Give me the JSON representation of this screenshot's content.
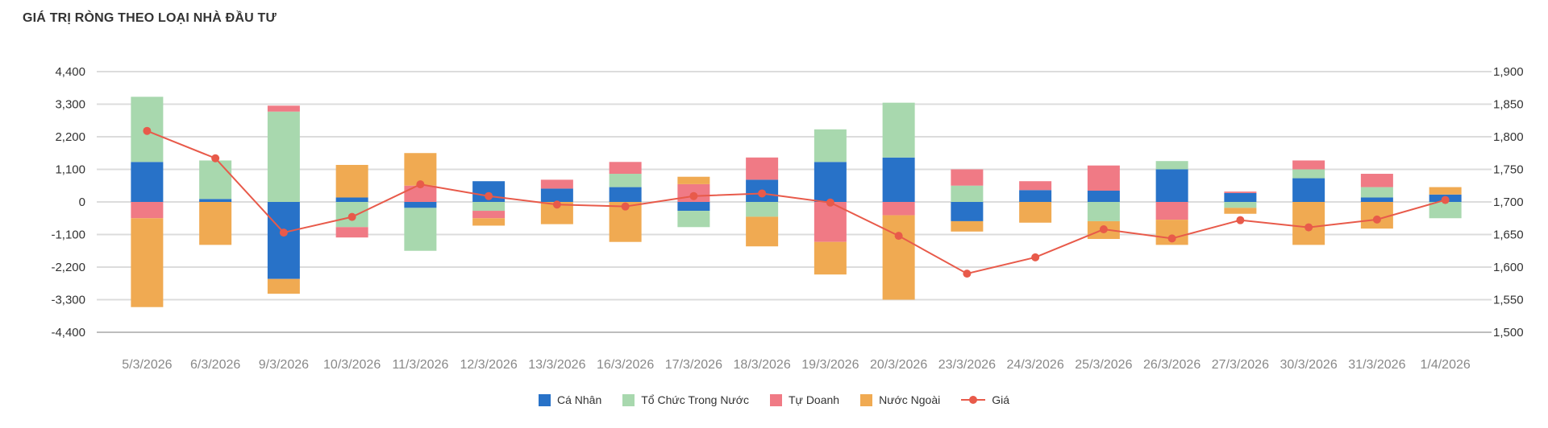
{
  "title": "GIÁ TRỊ RÒNG THEO LOẠI NHÀ ĐẦU TƯ",
  "chart_data": {
    "type": "bar",
    "stacked": true,
    "categories": [
      "5/3/2026",
      "6/3/2026",
      "9/3/2026",
      "10/3/2026",
      "11/3/2026",
      "12/3/2026",
      "13/3/2026",
      "16/3/2026",
      "17/3/2026",
      "18/3/2026",
      "19/3/2026",
      "20/3/2026",
      "23/3/2026",
      "24/3/2026",
      "25/3/2026",
      "26/3/2026",
      "27/3/2026",
      "30/3/2026",
      "31/3/2026",
      "1/4/2026"
    ],
    "ylim": [
      -4400,
      4400
    ],
    "yticks": [
      4400,
      3300,
      2200,
      1100,
      0,
      -1100,
      -2200,
      -3300,
      -4400
    ],
    "ytick_labels": [
      "4,400",
      "3,300",
      "2,200",
      "1,100",
      "0",
      "-1,100",
      "-2,200",
      "-3,300",
      "-4,400"
    ],
    "y2lim": [
      1500,
      1900
    ],
    "y2ticks": [
      1900,
      1850,
      1800,
      1750,
      1700,
      1650,
      1600,
      1550,
      1500
    ],
    "y2tick_labels": [
      "1,900",
      "1,850",
      "1,800",
      "1,750",
      "1,700",
      "1,650",
      "1,600",
      "1,550",
      "1,500"
    ],
    "grid": true,
    "legend_position": "bottom",
    "series": [
      {
        "name": "Cá Nhân",
        "color": "#2872C8",
        "values": [
          1350,
          100,
          -2600,
          150,
          -200,
          700,
          450,
          500,
          -300,
          750,
          1350,
          1500,
          -650,
          400,
          380,
          1100,
          300,
          800,
          150,
          250
        ]
      },
      {
        "name": "Tổ Chức Trong Nước",
        "color": "#A8D8AE",
        "values": [
          2200,
          1300,
          3050,
          -850,
          -1450,
          -300,
          0,
          450,
          -550,
          -500,
          1100,
          1850,
          550,
          0,
          -650,
          280,
          -200,
          300,
          350,
          -550
        ]
      },
      {
        "name": "Tự Doanh",
        "color": "#F07A85",
        "values": [
          -550,
          0,
          200,
          -350,
          550,
          -250,
          300,
          400,
          600,
          750,
          -1350,
          -450,
          550,
          300,
          850,
          -600,
          50,
          300,
          450,
          0
        ]
      },
      {
        "name": "Nước Ngoài",
        "color": "#F0AA52",
        "values": [
          -3000,
          -1450,
          -500,
          1100,
          1100,
          -250,
          -750,
          -1350,
          250,
          -1000,
          -1100,
          -2850,
          -350,
          -700,
          -600,
          -850,
          -200,
          -1450,
          -900,
          250
        ]
      }
    ],
    "line": {
      "name": "Giá",
      "color": "#E85A4A",
      "axis": "right",
      "values": [
        1809,
        1767,
        1653,
        1677,
        1727,
        1709,
        1696,
        1693,
        1709,
        1713,
        1699,
        1648,
        1590,
        1615,
        1658,
        1644,
        1672,
        1661,
        1673,
        1703
      ]
    }
  }
}
